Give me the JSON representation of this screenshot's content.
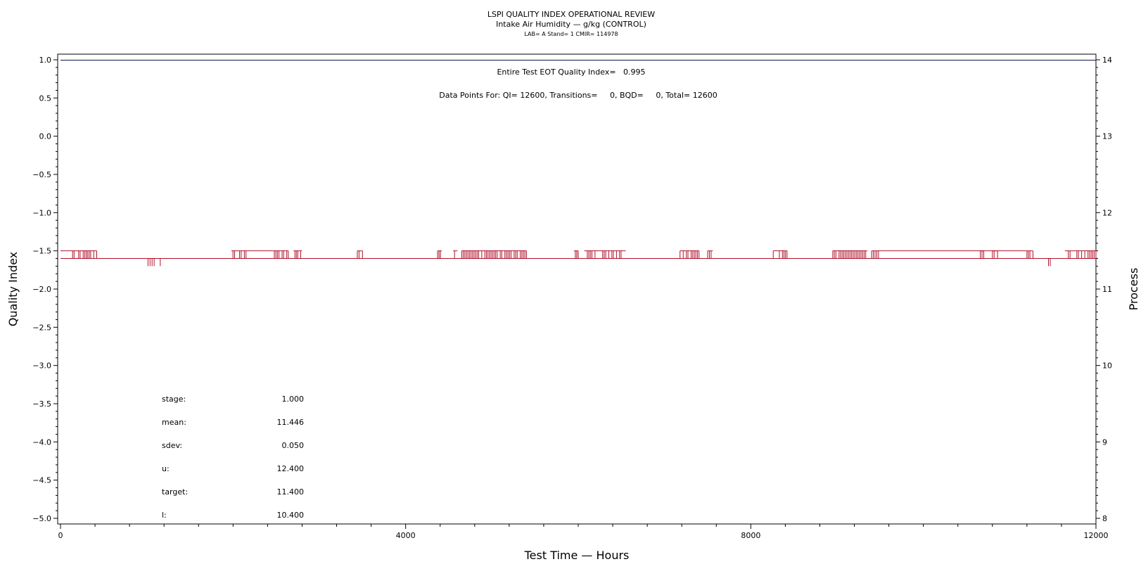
{
  "chart_data": {
    "type": "line",
    "title": "LSPI QUALITY INDEX OPERATIONAL REVIEW",
    "subtitle": "Intake Air Humidity — g/kg (CONTROL)",
    "subtitle2": "LAB= A Stand= 1 CMIR= 114978",
    "xlabel": "Test Time — Hours",
    "ylabel": "Quality Index",
    "y2label": "Process",
    "xlim": [
      0,
      12000
    ],
    "ylim": [
      -5.0,
      1.0
    ],
    "y2lim": [
      8,
      14
    ],
    "x_ticks": [
      "0",
      "4000",
      "8000",
      "12000"
    ],
    "x_tick_values": [
      0,
      4000,
      8000,
      12000
    ],
    "y_ticks": [
      "1.0",
      "0.5",
      "0.0",
      "−0.5",
      "−1.0",
      "−1.5",
      "−2.0",
      "−2.5",
      "−3.0",
      "−3.5",
      "−4.0",
      "−4.5",
      "−5.0"
    ],
    "y_tick_values": [
      1.0,
      0.5,
      0.0,
      -0.5,
      -1.0,
      -1.5,
      -2.0,
      -2.5,
      -3.0,
      -3.5,
      -4.0,
      -4.5,
      -5.0
    ],
    "y2_ticks": [
      "14",
      "13",
      "12",
      "11",
      "10",
      "9",
      "8"
    ],
    "y2_tick_values": [
      14,
      13,
      12,
      11,
      10,
      9,
      8
    ],
    "annotation_eot": "Entire Test EOT Quality Index=   0.995",
    "annotation_points": "Data Points For: QI= 12600, Transitions=     0, BQD=     0, Total= 12600",
    "stats": [
      {
        "label": "stage:",
        "value": "1.000"
      },
      {
        "label": "mean:",
        "value": "11.446"
      },
      {
        "label": "sdev:",
        "value": "0.050"
      },
      {
        "label": "u:",
        "value": "12.400"
      },
      {
        "label": "target:",
        "value": "11.400"
      },
      {
        "label": "l:",
        "value": "10.400"
      }
    ],
    "qi_series": {
      "name": "Quality Index",
      "x": [
        0,
        12000
      ],
      "y": [
        0.995,
        0.995
      ],
      "color": "#1f2a5c"
    },
    "process_series": {
      "name": "Process",
      "color": "#b0102a",
      "baseline": 11.4,
      "high": 11.5,
      "low": 11.3,
      "spikes_high": [
        [
          140,
          420
        ],
        [
          1980,
          2150
        ],
        [
          2460,
          2640
        ],
        [
          2700,
          2800
        ],
        [
          3440,
          3500
        ],
        [
          4370,
          4420
        ],
        [
          4550,
          4600
        ],
        [
          4650,
          5400
        ],
        [
          5950,
          6000
        ],
        [
          6070,
          6550
        ],
        [
          7180,
          7400
        ],
        [
          7500,
          7560
        ],
        [
          8260,
          8420
        ],
        [
          8950,
          9350
        ],
        [
          9400,
          9480
        ],
        [
          10660,
          10700
        ],
        [
          10800,
          10860
        ],
        [
          11200,
          11270
        ],
        [
          11640,
          11700
        ],
        [
          11760,
          12000
        ]
      ],
      "spikes_low": [
        [
          990,
          1180
        ],
        [
          11450,
          11470
        ]
      ],
      "high_blocks": [
        [
          0,
          140
        ],
        [
          2150,
          2460
        ],
        [
          9480,
          11200
        ],
        [
          11700,
          11760
        ]
      ]
    }
  }
}
